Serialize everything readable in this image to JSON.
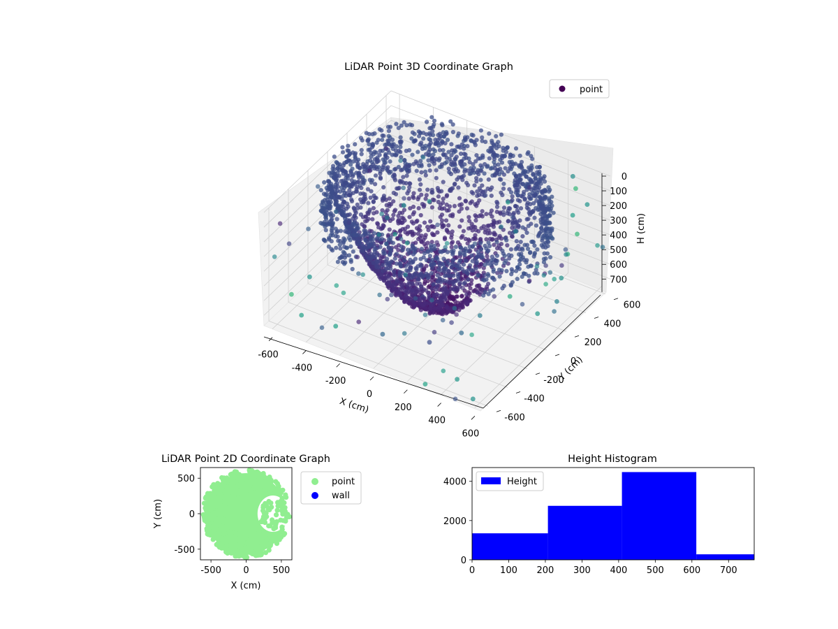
{
  "chart_data": [
    {
      "type": "scatter3d",
      "title": "LiDAR Point 3D Coordinate Graph",
      "xlabel": "X (cm)",
      "ylabel": "Y (cm)",
      "zlabel": "H (cm)",
      "xticks": [
        -600,
        -400,
        -200,
        0,
        200,
        400,
        600
      ],
      "yticks": [
        -600,
        -400,
        -200,
        0,
        200,
        400,
        600
      ],
      "zticks": [
        0,
        100,
        200,
        300,
        400,
        500,
        600,
        700
      ],
      "xlim": [
        -650,
        650
      ],
      "ylim": [
        -650,
        650
      ],
      "zlim": [
        0,
        770
      ],
      "zaxis_inverted": true,
      "colormap": "viridis",
      "legend": {
        "entries": [
          "point"
        ],
        "location": "upper right",
        "marker_color": "#440154"
      },
      "grid": true,
      "pane_color": "#f2f2f2",
      "series": [
        {
          "name": "point",
          "description_points": "dense bowl-shaped point cloud centered near origin, radius ~600 cm, heights 0-770 cm, plus sparse outliers",
          "sample_points": [
            {
              "x": 480,
              "y": 560,
              "h": 20
            },
            {
              "x": 520,
              "y": 520,
              "h": 60
            },
            {
              "x": 600,
              "y": 500,
              "h": 120
            },
            {
              "x": 560,
              "y": 420,
              "h": 160
            },
            {
              "x": 610,
              "y": 380,
              "h": 240
            },
            {
              "x": 600,
              "y": 300,
              "h": 330
            },
            {
              "x": 620,
              "y": 200,
              "h": 420
            },
            {
              "x": 640,
              "y": 120,
              "h": 520
            },
            {
              "x": 560,
              "y": 60,
              "h": 600
            },
            {
              "x": 420,
              "y": 20,
              "h": 520
            },
            {
              "x": 300,
              "y": -80,
              "h": 640
            },
            {
              "x": 260,
              "y": -200,
              "h": 700
            },
            {
              "x": 140,
              "y": -320,
              "h": 740
            },
            {
              "x": -80,
              "y": -420,
              "h": 720
            },
            {
              "x": -300,
              "y": -520,
              "h": 700
            },
            {
              "x": -480,
              "y": -560,
              "h": 680
            },
            {
              "x": -620,
              "y": -420,
              "h": 690
            },
            {
              "x": -640,
              "y": -200,
              "h": 720
            },
            {
              "x": 420,
              "y": -520,
              "h": 740
            },
            {
              "x": 560,
              "y": -600,
              "h": 760
            },
            {
              "x": 300,
              "y": -640,
              "h": 750
            }
          ]
        }
      ]
    },
    {
      "type": "scatter",
      "title": "LiDAR Point 2D Coordinate Graph",
      "xlabel": "X (cm)",
      "ylabel": "Y (cm)",
      "xticks": [
        -500,
        0,
        500
      ],
      "yticks": [
        -500,
        0,
        500
      ],
      "xlim": [
        -650,
        650
      ],
      "ylim": [
        -650,
        650
      ],
      "legend": {
        "location": "outside right",
        "entries": [
          {
            "name": "point",
            "color": "#90ee90"
          },
          {
            "name": "wall",
            "color": "#0000ff"
          }
        ]
      },
      "series": [
        {
          "name": "point",
          "color": "#90ee90",
          "shape": "dense disk of radius ~600 cm centered at origin with a notch on the right side (x>200, |y|<300)"
        },
        {
          "name": "wall",
          "color": "#0000ff",
          "points": []
        }
      ]
    },
    {
      "type": "bar",
      "title": "Height Histogram",
      "xticks": [
        0,
        100,
        200,
        300,
        400,
        500,
        600,
        700
      ],
      "yticks": [
        0,
        2000,
        4000
      ],
      "xlim": [
        0,
        770
      ],
      "ylim": [
        0,
        4700
      ],
      "legend": {
        "entries": [
          "Height"
        ],
        "location": "upper left"
      },
      "color": "#0000ff",
      "bins": [
        {
          "from": 0,
          "to": 207,
          "count": 1350
        },
        {
          "from": 207,
          "to": 409,
          "count": 2750
        },
        {
          "from": 409,
          "to": 612,
          "count": 4470
        },
        {
          "from": 612,
          "to": 770,
          "count": 280
        }
      ]
    }
  ]
}
